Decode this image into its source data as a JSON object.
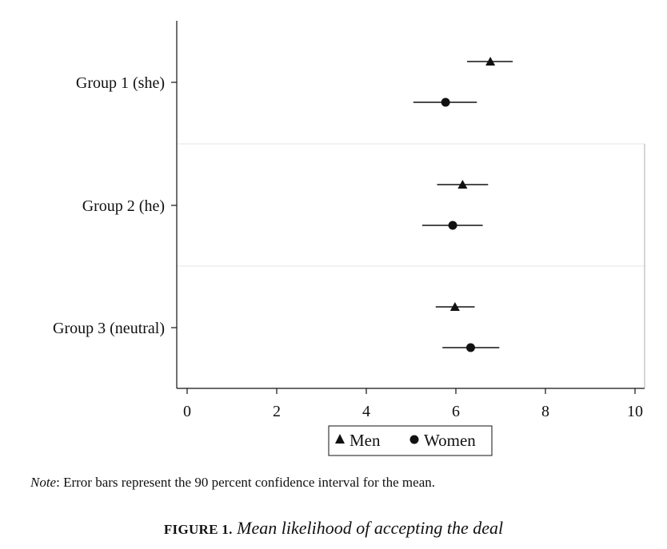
{
  "chart_data": {
    "type": "scatter",
    "subtype": "dot-plot-with-error-bars",
    "orientation": "horizontal",
    "categories": [
      "Group 1 (she)",
      "Group 2 (he)",
      "Group 3 (neutral)"
    ],
    "xlim": [
      0,
      10
    ],
    "xticks": [
      "0",
      "2",
      "4",
      "6",
      "8",
      "10"
    ],
    "series": [
      {
        "name": "Men",
        "marker": "triangle",
        "values": [
          6.77,
          6.15,
          5.98
        ],
        "ci_low": [
          6.25,
          5.58,
          5.55
        ],
        "ci_high": [
          7.27,
          6.72,
          6.42
        ]
      },
      {
        "name": "Women",
        "marker": "circle",
        "values": [
          5.77,
          5.93,
          6.33
        ],
        "ci_low": [
          5.05,
          5.25,
          5.7
        ],
        "ci_high": [
          6.47,
          6.6,
          6.97
        ]
      }
    ],
    "legend_position": "bottom",
    "grid": "horizontal separators between groups",
    "color": "#111111"
  },
  "note": {
    "prefix": "Note",
    "text": ": Error bars represent the 90 percent confidence interval for the mean."
  },
  "caption": {
    "label": "FIGURE 1.",
    "title": "Mean likelihood of accepting the deal"
  }
}
